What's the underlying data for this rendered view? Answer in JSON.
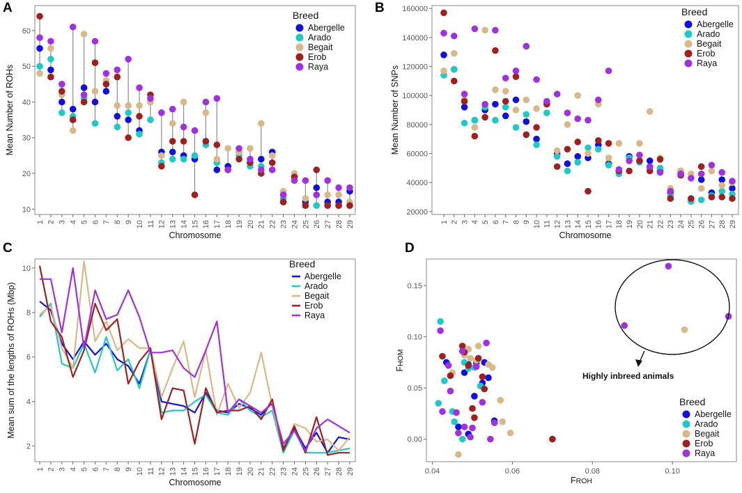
{
  "breeds": [
    "Abergelle",
    "Arado",
    "Begait",
    "Erob",
    "Raya"
  ],
  "colors": {
    "Abergelle": "#1010e0",
    "Arado": "#20c8c8",
    "Begait": "#d8b888",
    "Erob": "#a02020",
    "Raya": "#a030e0"
  },
  "legend_title": "Breed",
  "chart_data": [
    {
      "type": "dumbbell",
      "panel": "A",
      "xlabel": "Chromosome",
      "ylabel": "Mean Number of ROHs",
      "categories": [
        "1",
        "2",
        "3",
        "4",
        "5",
        "6",
        "7",
        "8",
        "9",
        "10",
        "11",
        "12",
        "13",
        "14",
        "15",
        "16",
        "17",
        "18",
        "19",
        "20",
        "21",
        "22",
        "23",
        "24",
        "25",
        "26",
        "27",
        "28",
        "29"
      ],
      "yticks": [
        10,
        20,
        30,
        40,
        50,
        60
      ],
      "ylim": [
        8.5,
        67
      ],
      "series": [
        {
          "name": "Abergelle",
          "values": [
            55,
            49,
            40,
            38,
            44,
            40,
            43,
            36,
            35,
            32,
            40,
            26,
            26,
            25,
            24,
            29,
            21,
            22,
            26,
            23,
            24,
            26,
            12,
            19,
            12,
            16,
            12,
            12,
            15
          ]
        },
        {
          "name": "Arado",
          "values": [
            50,
            52,
            37,
            36,
            41,
            34,
            45,
            33,
            37,
            31,
            35,
            23,
            24,
            24,
            25,
            28,
            23,
            21,
            25,
            22,
            22,
            21,
            13,
            19,
            11,
            11,
            11,
            11,
            11
          ]
        },
        {
          "name": "Begait",
          "values": [
            48,
            55,
            42,
            32,
            59,
            43,
            46,
            39,
            39,
            39,
            40,
            25,
            34,
            40,
            32,
            37,
            24,
            27,
            26,
            27,
            34,
            25,
            15,
            20,
            13,
            14,
            14,
            14,
            12
          ]
        },
        {
          "name": "Erob",
          "values": [
            64,
            47,
            43,
            35,
            40,
            51,
            45,
            47,
            30,
            36,
            42,
            22,
            29,
            29,
            14,
            29,
            28,
            21,
            24,
            23,
            20,
            23,
            12,
            19,
            11,
            21,
            11,
            11,
            11
          ]
        },
        {
          "name": "Raya",
          "values": [
            58,
            57,
            45,
            61,
            42,
            57,
            48,
            49,
            52,
            44,
            41,
            37,
            38,
            33,
            32,
            40,
            41,
            21,
            27,
            24,
            21,
            21,
            14,
            18,
            18,
            14,
            18,
            16,
            16
          ]
        }
      ]
    },
    {
      "type": "scatter",
      "panel": "B",
      "xlabel": "Chromosome",
      "ylabel": "Mean Number of SNPs",
      "categories": [
        "1",
        "2",
        "3",
        "4",
        "5",
        "6",
        "7",
        "8",
        "9",
        "10",
        "11",
        "12",
        "13",
        "14",
        "15",
        "16",
        "17",
        "18",
        "19",
        "20",
        "21",
        "22",
        "23",
        "24",
        "25",
        "26",
        "27",
        "28",
        "29"
      ],
      "yticks": [
        20000,
        40000,
        60000,
        80000,
        100000,
        120000,
        140000,
        160000
      ],
      "ytick_labels": [
        "20000",
        "40000",
        "60000",
        "80000",
        "100000",
        "120000",
        "140000",
        "160000"
      ],
      "ylim": [
        18000,
        162000
      ],
      "series": [
        {
          "name": "Abergelle",
          "values": [
            128000,
            118000,
            92000,
            83000,
            90000,
            94000,
            86000,
            97000,
            82000,
            70000,
            95000,
            60000,
            53000,
            58000,
            57000,
            66000,
            53000,
            48000,
            58000,
            55000,
            55000,
            48000,
            33000,
            48000,
            27000,
            42000,
            33000,
            42000,
            36000
          ]
        },
        {
          "name": "Arado",
          "values": [
            114000,
            118000,
            81000,
            83000,
            92000,
            83000,
            92000,
            78000,
            87000,
            66000,
            88000,
            58000,
            48000,
            54000,
            64000,
            63000,
            52000,
            46000,
            57000,
            54000,
            50000,
            50000,
            31000,
            46000,
            27000,
            28000,
            31000,
            34000,
            32000
          ]
        },
        {
          "name": "Begait",
          "values": [
            117000,
            129000,
            97000,
            78000,
            145000,
            104000,
            103000,
            90000,
            97000,
            91000,
            95000,
            62000,
            80000,
            100000,
            60000,
            94000,
            57000,
            67000,
            55000,
            67000,
            89000,
            57000,
            36000,
            48000,
            46000,
            36000,
            48000,
            38000,
            40000
          ]
        },
        {
          "name": "Erob",
          "values": [
            157000,
            110000,
            96000,
            72000,
            85000,
            131000,
            96000,
            113000,
            73000,
            78000,
            94000,
            51000,
            63000,
            68000,
            34000,
            69000,
            67000,
            48000,
            48000,
            55000,
            48000,
            56000,
            29000,
            45000,
            29000,
            51000,
            30000,
            30000,
            29000
          ]
        },
        {
          "name": "Raya",
          "values": [
            143000,
            141000,
            101000,
            146000,
            94000,
            145000,
            112000,
            117000,
            134000,
            111000,
            96000,
            101000,
            88000,
            84000,
            83000,
            97000,
            117000,
            49000,
            55000,
            59000,
            51000,
            47000,
            34000,
            46000,
            43000,
            46000,
            52000,
            47000,
            41000
          ]
        }
      ]
    },
    {
      "type": "line",
      "panel": "C",
      "xlabel": "Chromosome",
      "ylabel": "Mean sum of the lengths of ROHs (Mbp)",
      "categories": [
        "1",
        "2",
        "3",
        "4",
        "5",
        "6",
        "7",
        "8",
        "9",
        "10",
        "11",
        "12",
        "13",
        "14",
        "15",
        "16",
        "17",
        "18",
        "19",
        "20",
        "21",
        "22",
        "23",
        "24",
        "25",
        "26",
        "27",
        "28",
        "29"
      ],
      "yticks": [
        2,
        4,
        6,
        8,
        10
      ],
      "ylim": [
        1.3,
        10.4
      ],
      "series": [
        {
          "name": "Abergelle",
          "values": [
            8.5,
            8.1,
            6.6,
            5.9,
            6.7,
            6.1,
            6.6,
            5.9,
            5.6,
            4.8,
            6.3,
            4.0,
            3.9,
            3.8,
            3.5,
            4.4,
            3.6,
            3.5,
            3.9,
            3.7,
            3.4,
            4.0,
            1.9,
            2.8,
            1.9,
            2.6,
            1.7,
            2.4,
            2.3
          ]
        },
        {
          "name": "Arado",
          "values": [
            7.8,
            8.4,
            5.7,
            5.5,
            6.6,
            5.3,
            6.9,
            5.4,
            5.9,
            4.6,
            6.3,
            3.5,
            3.6,
            3.6,
            4.0,
            4.3,
            3.5,
            3.4,
            4.1,
            3.6,
            3.3,
            3.6,
            1.7,
            2.7,
            1.7,
            1.7,
            1.7,
            1.8,
            1.9
          ]
        },
        {
          "name": "Begait",
          "values": [
            7.9,
            8.3,
            6.4,
            5.5,
            10.3,
            6.7,
            7.6,
            6.3,
            6.8,
            6.4,
            6.4,
            4.2,
            5.5,
            6.7,
            4.2,
            6.3,
            3.4,
            4.8,
            3.7,
            4.4,
            6.2,
            3.8,
            1.8,
            3.0,
            2.8,
            2.2,
            2.3,
            1.8,
            2.4
          ]
        },
        {
          "name": "Erob",
          "values": [
            10.1,
            7.6,
            6.9,
            5.1,
            6.3,
            8.4,
            7.2,
            7.7,
            4.8,
            5.8,
            6.4,
            3.2,
            4.6,
            4.5,
            2.1,
            4.6,
            3.5,
            3.6,
            3.6,
            3.8,
            3.2,
            4.1,
            1.8,
            2.9,
            1.7,
            3.3,
            1.6,
            1.7,
            1.7
          ]
        },
        {
          "name": "Raya",
          "values": [
            9.5,
            9.5,
            7.1,
            10.0,
            6.4,
            9.0,
            7.7,
            7.9,
            9.0,
            7.8,
            6.2,
            6.2,
            6.3,
            5.5,
            5.1,
            6.3,
            7.6,
            3.5,
            4.1,
            3.8,
            3.5,
            3.9,
            2.1,
            2.7,
            1.8,
            2.8,
            3.2,
            2.9,
            2.6
          ]
        }
      ]
    },
    {
      "type": "scatter",
      "panel": "D",
      "xlabel": "FROH",
      "ylabel": "FHOM",
      "xlabel_main": "F",
      "xlabel_sub": "ROH",
      "ylabel_main": "F",
      "ylabel_sub": "HOM",
      "xlim": [
        0.0385,
        0.116
      ],
      "ylim": [
        -0.022,
        0.176
      ],
      "xticks": [
        0.04,
        0.06,
        0.08,
        0.1
      ],
      "xtick_labels": [
        "0.04",
        "0.06",
        "0.08",
        "0.10"
      ],
      "yticks": [
        0.0,
        0.05,
        0.1,
        0.15
      ],
      "ytick_labels": [
        "0.00",
        "0.05",
        "0.10",
        "0.15"
      ],
      "annotation": "Highly inbreed animals",
      "series": [
        {
          "name": "Abergelle",
          "points": [
            [
              0.0435,
              0.075
            ],
            [
              0.0465,
              0.012
            ],
            [
              0.048,
              0.065
            ],
            [
              0.049,
              0.073
            ],
            [
              0.0505,
              0.042
            ],
            [
              0.051,
              0.075
            ],
            [
              0.0525,
              0.055
            ],
            [
              0.053,
              0.075
            ],
            [
              0.054,
              0.06
            ],
            [
              0.0555,
              0.018
            ],
            [
              0.049,
              0.005
            ]
          ]
        },
        {
          "name": "Arado",
          "points": [
            [
              0.0415,
              0.035
            ],
            [
              0.042,
              0.115
            ],
            [
              0.043,
              0.057
            ],
            [
              0.045,
              0.027
            ],
            [
              0.0455,
              0.017
            ],
            [
              0.048,
              0.075
            ],
            [
              0.049,
              0.069
            ],
            [
              0.0505,
              0.07
            ],
            [
              0.051,
              0.071
            ],
            [
              0.052,
              0.052
            ],
            [
              0.0475,
              0.0
            ]
          ]
        },
        {
          "name": "Begait",
          "points": [
            [
              0.0465,
              -0.015
            ],
            [
              0.048,
              0.082
            ],
            [
              0.049,
              0.088
            ],
            [
              0.0495,
              0.079
            ],
            [
              0.051,
              0.077
            ],
            [
              0.0515,
              0.091
            ],
            [
              0.054,
              0.073
            ],
            [
              0.055,
              0.07
            ],
            [
              0.057,
              0.038
            ],
            [
              0.0575,
              0.017
            ],
            [
              0.0595,
              0.006
            ],
            [
              0.045,
              0.065
            ],
            [
              0.103,
              0.107
            ]
          ]
        },
        {
          "name": "Erob",
          "points": [
            [
              0.0425,
              0.081
            ],
            [
              0.0445,
              0.062
            ],
            [
              0.0475,
              0.091
            ],
            [
              0.048,
              0.085
            ],
            [
              0.049,
              0.072
            ],
            [
              0.05,
              0.03
            ],
            [
              0.0505,
              0.021
            ],
            [
              0.0515,
              0.079
            ],
            [
              0.0525,
              0.061
            ],
            [
              0.053,
              0.049
            ],
            [
              0.07,
              0.0
            ]
          ]
        },
        {
          "name": "Raya",
          "points": [
            [
              0.042,
              0.106
            ],
            [
              0.0425,
              0.027
            ],
            [
              0.044,
              0.072
            ],
            [
              0.0445,
              0.047
            ],
            [
              0.046,
              0.026
            ],
            [
              0.0465,
              0.006
            ],
            [
              0.0475,
              0.086
            ],
            [
              0.048,
              0.012
            ],
            [
              0.0495,
              0.002
            ],
            [
              0.05,
              0.011
            ],
            [
              0.051,
              0.071
            ],
            [
              0.0525,
              0.036
            ],
            [
              0.0535,
              0.094
            ],
            [
              0.0545,
              0.0
            ],
            [
              0.0555,
              0.016
            ],
            [
              0.088,
              0.111
            ],
            [
              0.099,
              0.169
            ],
            [
              0.114,
              0.12
            ]
          ]
        }
      ]
    }
  ]
}
